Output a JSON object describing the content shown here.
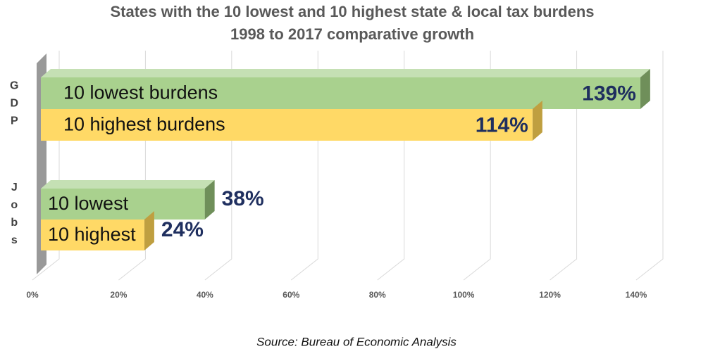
{
  "chart_data": {
    "type": "bar3d_horizontal",
    "title": "States with the 10 lowest and 10 highest state & local tax burdens",
    "subtitle": "1998 to 2017 comparative growth",
    "categories": [
      "GDP",
      "Jobs"
    ],
    "series": [
      {
        "name": "10 lowest burdens",
        "color": "#a9d18e",
        "labels": [
          "10 lowest burdens",
          "10 lowest"
        ],
        "values": [
          139,
          38
        ],
        "value_labels": [
          "139%",
          "38%"
        ]
      },
      {
        "name": "10 highest burdens",
        "color": "#ffd966",
        "labels": [
          "10 highest burdens",
          "10 highest"
        ],
        "values": [
          114,
          24
        ],
        "value_labels": [
          "114%",
          "24%"
        ]
      }
    ],
    "xlim": [
      0,
      140
    ],
    "xticks": [
      {
        "value": 0,
        "label": "0%"
      },
      {
        "value": 20,
        "label": "20%"
      },
      {
        "value": 40,
        "label": "40%"
      },
      {
        "value": 60,
        "label": "60%"
      },
      {
        "value": 80,
        "label": "80%"
      },
      {
        "value": 100,
        "label": "100%"
      },
      {
        "value": 120,
        "label": "120%"
      },
      {
        "value": 140,
        "label": "140%"
      }
    ],
    "grid": true,
    "source": "Source: Bureau of Economic Analysis"
  }
}
